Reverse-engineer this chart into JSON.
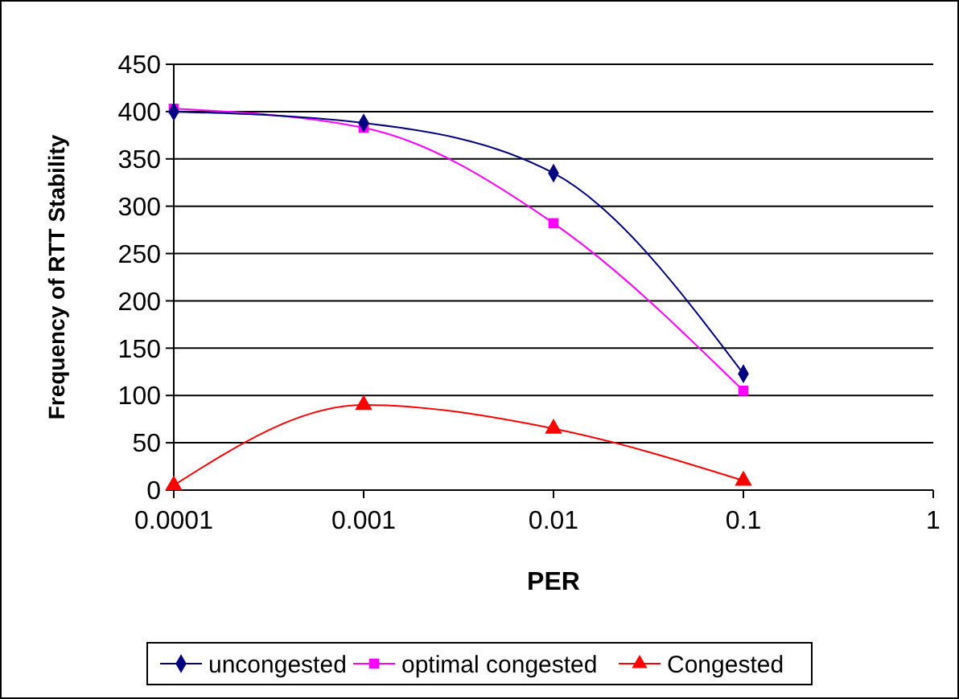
{
  "chart_data": {
    "type": "line",
    "xlabel": "PER",
    "ylabel": "Frequency of RTT Stability",
    "log": "x",
    "x": [
      0.0001,
      0.001,
      0.01,
      0.1
    ],
    "xlim": [
      0.0001,
      1
    ],
    "xticks": [
      0.0001,
      0.001,
      0.01,
      0.1,
      1
    ],
    "ylim": [
      0,
      450
    ],
    "yticks": [
      0,
      50,
      100,
      150,
      200,
      250,
      300,
      350,
      400,
      450
    ],
    "grid": "y",
    "legend": "bottom",
    "series": [
      {
        "name": "uncongested",
        "color": "#000080",
        "marker": "diamond",
        "values": [
          400,
          388,
          335,
          123
        ]
      },
      {
        "name": "optimal congested",
        "color": "#ff00ff",
        "marker": "square",
        "values": [
          403,
          383,
          282,
          105
        ]
      },
      {
        "name": "Congested",
        "color": "#ff0000",
        "marker": "triangle",
        "values": [
          5,
          90,
          65,
          10
        ]
      }
    ]
  }
}
